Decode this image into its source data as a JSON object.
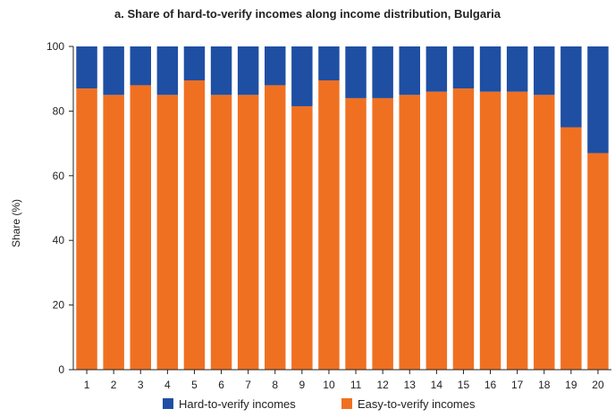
{
  "chart_data": {
    "type": "bar",
    "stacked": true,
    "title": "a. Share of hard-to-verify incomes along income distribution, Bulgaria",
    "xlabel": "",
    "ylabel": "Share (%)",
    "ylim": [
      0,
      100
    ],
    "yticks": [
      0,
      20,
      40,
      60,
      80,
      100
    ],
    "categories": [
      "1",
      "2",
      "3",
      "4",
      "5",
      "6",
      "7",
      "8",
      "9",
      "10",
      "11",
      "12",
      "13",
      "14",
      "15",
      "16",
      "17",
      "18",
      "19",
      "20"
    ],
    "series": [
      {
        "name": "Easy-to-verify incomes",
        "color": "#f07022",
        "values": [
          87,
          85,
          88,
          85,
          89.5,
          85,
          85,
          88,
          81.5,
          89.5,
          84,
          84,
          85,
          86,
          87,
          86,
          86,
          85,
          75,
          67
        ]
      },
      {
        "name": "Hard-to-verify incomes",
        "color": "#1f4fa3",
        "values": [
          13,
          15,
          12,
          15,
          10.5,
          15,
          15,
          12,
          18.5,
          10.5,
          16,
          16,
          15,
          14,
          13,
          14,
          14,
          15,
          25,
          33
        ]
      }
    ],
    "legend": {
      "position": "bottom",
      "order": [
        "Hard-to-verify incomes",
        "Easy-to-verify incomes"
      ]
    },
    "grid": false
  }
}
